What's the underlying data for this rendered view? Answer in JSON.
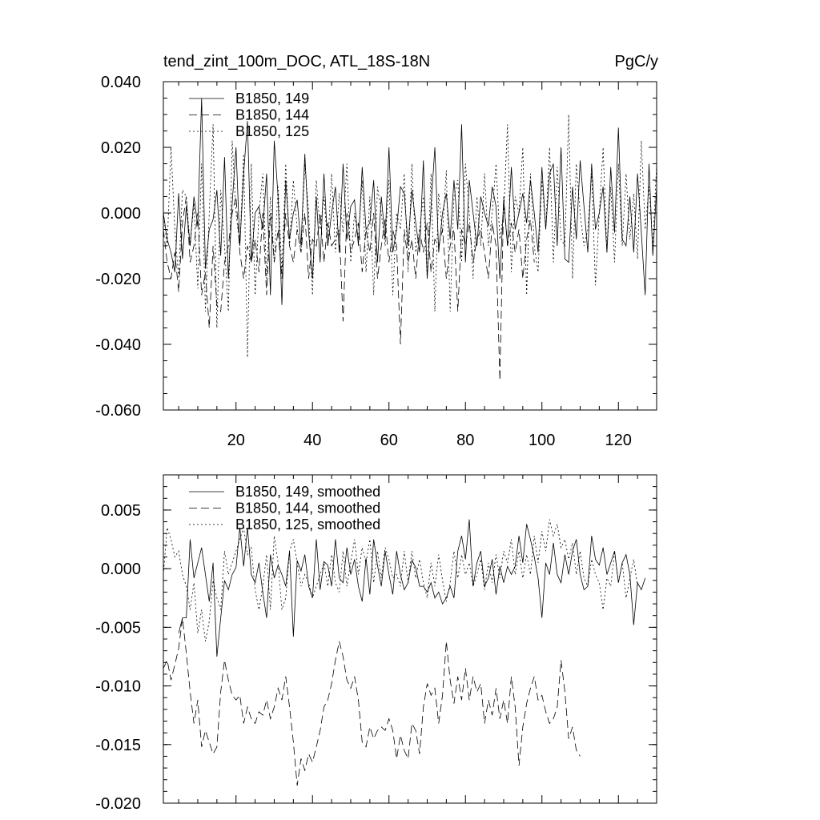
{
  "chart_data": [
    {
      "type": "line",
      "title": "tend_zint_100m_DOC, ATL_18S-18N",
      "units": "PgC/y",
      "xlim": [
        1,
        130
      ],
      "ylim": [
        -0.06,
        0.04
      ],
      "x_ticks": [
        20,
        40,
        60,
        80,
        100,
        120
      ],
      "x_tick_labels": [
        "20",
        "40",
        "60",
        "80",
        "100",
        "120"
      ],
      "y_ticks": [
        0.04,
        0.02,
        0.0,
        -0.02,
        -0.04,
        -0.06
      ],
      "y_tick_labels": [
        "0.040",
        "0.020",
        "0.000",
        "-0.020",
        "-0.040",
        "-0.060"
      ],
      "legend_position": "top-left",
      "series": [
        {
          "name": "B1850, 149",
          "style": "solid",
          "start": 1,
          "step": 1,
          "values": [
            0.0,
            -0.008,
            -0.012,
            -0.018,
            0.006,
            -0.014,
            0.002,
            -0.01,
            0.005,
            -0.004,
            0.035,
            -0.017,
            -0.005,
            -0.002,
            0.007,
            -0.013,
            0.017,
            -0.02,
            0.003,
            0.02,
            -0.01,
            0.012,
            0.028,
            -0.015,
            0.0,
            0.002,
            -0.005,
            0.012,
            -0.025,
            0.022,
            0.005,
            -0.028,
            0.01,
            -0.008,
            0.0,
            0.004,
            -0.01,
            0.018,
            -0.006,
            -0.02,
            0.005,
            -0.015,
            0.012,
            -0.01,
            0.0,
            0.008,
            -0.012,
            0.015,
            -0.008,
            0.002,
            0.004,
            -0.01,
            0.014,
            -0.005,
            -0.003,
            0.01,
            -0.015,
            0.005,
            -0.008,
            0.02,
            -0.012,
            -0.005,
            0.008,
            0.006,
            -0.01,
            0.007,
            -0.003,
            -0.012,
            0.016,
            -0.02,
            0.002,
            0.02,
            -0.012,
            0.0,
            0.006,
            -0.008,
            0.01,
            -0.005,
            0.027,
            -0.015,
            0.01,
            0.0,
            -0.01,
            0.005,
            0.0,
            -0.004,
            0.008,
            0.002,
            -0.02,
            0.004,
            -0.01,
            0.014,
            -0.005,
            0.0,
            0.006,
            -0.003,
            0.01,
            0.0,
            -0.012,
            0.014,
            -0.005,
            0.012,
            0.015,
            -0.01,
            0.02,
            -0.014,
            -0.015,
            0.008,
            -0.008,
            0.016,
            0.002,
            -0.012,
            0.015,
            -0.005,
            0.0,
            0.008,
            -0.012,
            0.014,
            -0.006,
            0.026,
            -0.008,
            -0.01,
            0.005,
            -0.012,
            0.012,
            -0.006,
            -0.025,
            0.015,
            -0.013,
            0.008
          ]
        },
        {
          "name": "B1850, 144",
          "style": "dashed",
          "start": 1,
          "step": 1,
          "values": [
            -0.005,
            -0.015,
            -0.02,
            -0.012,
            -0.024,
            -0.003,
            0.005,
            -0.015,
            -0.01,
            0.0,
            -0.025,
            -0.018,
            -0.035,
            -0.01,
            -0.028,
            -0.03,
            -0.015,
            -0.01,
            0.0,
            0.005,
            -0.012,
            -0.02,
            -0.01,
            -0.015,
            -0.008,
            -0.018,
            0.0,
            -0.025,
            0.0,
            -0.015,
            -0.005,
            -0.02,
            0.0,
            -0.01,
            -0.015,
            -0.005,
            -0.012,
            0.0,
            -0.02,
            -0.008,
            -0.01,
            0.0,
            -0.015,
            -0.003,
            -0.01,
            -0.008,
            -0.005,
            -0.033,
            0.0,
            -0.012,
            -0.008,
            -0.003,
            -0.018,
            -0.005,
            -0.012,
            0.0,
            -0.02,
            -0.01,
            -0.002,
            -0.015,
            -0.005,
            -0.01,
            -0.04,
            -0.005,
            -0.015,
            -0.008,
            -0.02,
            -0.005,
            -0.012,
            -0.003,
            -0.018,
            -0.008,
            -0.01,
            -0.005,
            -0.02,
            -0.01,
            -0.005,
            -0.03,
            -0.005,
            -0.01,
            -0.003,
            -0.015,
            -0.008,
            -0.005,
            -0.012,
            -0.02,
            -0.003,
            -0.01,
            -0.051,
            0.005,
            -0.01,
            -0.003,
            -0.012,
            -0.005,
            -0.02,
            -0.008,
            -0.002,
            -0.015
          ]
        },
        {
          "name": "B1850, 125",
          "style": "dotted",
          "start": 1,
          "step": 1,
          "values": [
            0.0,
            -0.01,
            0.02,
            -0.005,
            -0.02,
            0.007,
            0.005,
            -0.01,
            0.003,
            -0.023,
            0.015,
            -0.03,
            0.0,
            0.027,
            -0.035,
            0.007,
            -0.01,
            -0.03,
            0.022,
            0.0,
            -0.01,
            0.018,
            -0.044,
            0.015,
            -0.025,
            0.0,
            0.012,
            -0.02,
            0.005,
            -0.015,
            0.008,
            -0.018,
            0.015,
            -0.01,
            0.01,
            -0.005,
            -0.012,
            0.015,
            0.0,
            -0.025,
            0.01,
            -0.005,
            0.005,
            -0.01,
            0.012,
            -0.012,
            0.006,
            -0.006,
            0.015,
            -0.015,
            0.0,
            -0.008,
            0.01,
            -0.018,
            0.005,
            -0.025,
            0.008,
            0.0,
            -0.01,
            0.01,
            -0.025,
            0.0,
            -0.005,
            0.012,
            -0.018,
            0.015,
            -0.012,
            -0.005,
            0.005,
            -0.02,
            0.012,
            -0.03,
            0.006,
            -0.006,
            0.013,
            -0.03,
            0.005,
            0.01,
            -0.015,
            0.015,
            0.0,
            -0.02,
            0.005,
            -0.01,
            0.012,
            -0.01,
            0.0,
            0.015,
            -0.008,
            0.0,
            0.027,
            -0.018,
            0.005,
            0.0,
            0.02,
            -0.025,
            0.012,
            -0.01,
            -0.018,
            0.01,
            -0.005,
            0.02,
            -0.015,
            0.014,
            -0.008,
            -0.01,
            0.03,
            -0.02,
            0.015,
            0.0,
            -0.01,
            -0.005,
            0.012,
            -0.022,
            0.0,
            0.02,
            -0.012,
            0.008,
            -0.015,
            0.015,
            -0.01,
            0.012,
            -0.008,
            0.006,
            -0.014,
            0.022,
            -0.005,
            0.008,
            -0.01,
            0.015
          ]
        }
      ]
    },
    {
      "type": "line",
      "title": "",
      "xlim": [
        1,
        130
      ],
      "ylim": [
        -0.02,
        0.008
      ],
      "x_ticks": [
        20,
        40,
        60,
        80,
        100,
        120
      ],
      "y_ticks": [
        0.005,
        0.0,
        -0.005,
        -0.01,
        -0.015,
        -0.02
      ],
      "y_tick_labels": [
        "0.005",
        "0.000",
        "-0.005",
        "-0.010",
        "-0.015",
        "-0.020"
      ],
      "legend_position": "top-left",
      "series": [
        {
          "name": "B1850, 149, smoothed",
          "style": "solid",
          "start": 5,
          "step": 1,
          "values": [
            -0.0055,
            -0.0042,
            -0.0042,
            0.0025,
            -0.0008,
            0.0005,
            0.0018,
            -0.0005,
            -0.0028,
            0.0005,
            -0.0075,
            -0.0042,
            -0.001,
            -0.0018,
            -0.0005,
            0.0001,
            0.0035,
            0.0002,
            0.0035,
            -0.0005,
            -0.0012,
            0.0005,
            -0.002,
            -0.0042,
            0.0012,
            -0.0008,
            0.0003,
            -0.0005,
            -0.0015,
            0.0015,
            -0.0058,
            0.0007,
            -0.0002,
            0.0012,
            -0.0015,
            -0.0025,
            0.0025,
            -0.0018,
            0.0006,
            0.0003,
            -0.0015,
            0.0025,
            -0.0008,
            -0.0012,
            0.0018,
            -0.0005,
            0.0008,
            -0.0015,
            -0.0028,
            0.0009,
            -0.0022,
            0.0025,
            0.0003,
            -0.0015,
            0.0015,
            -0.0005,
            -0.0022,
            0.0015,
            -0.0005,
            -0.0018,
            -0.0012,
            0.0007,
            0.0001,
            -0.0015,
            -0.0015,
            -0.002,
            -0.0012,
            -0.0025,
            -0.002,
            -0.003,
            -0.0025,
            -0.0015,
            -0.0025,
            0.0015,
            0.0028,
            0.0008,
            0.0042,
            -0.0015,
            0.0005,
            0.0015,
            -0.0015,
            -0.0008,
            0.0008,
            -0.0022,
            0.0002,
            -0.0012,
            0.0002,
            -0.0005,
            0.0002,
            0.0028,
            0.0005,
            0.0038,
            0.0025,
            0.001,
            -0.0008,
            -0.0042,
            0.0005,
            -0.0005,
            0.0022,
            -0.0005,
            -0.0012,
            0.0012,
            -0.0005,
            0.0015,
            0.0025,
            -0.0005,
            -0.0018,
            -0.0015,
            0.0028,
            0.0008,
            0.0003,
            0.0018,
            -0.0005,
            0.0005,
            0.0015,
            -0.0012,
            0.0005,
            0.0012,
            -0.0005,
            -0.0048,
            -0.0012,
            -0.0018,
            -0.0008
          ]
        },
        {
          "name": "B1850, 144, smoothed",
          "style": "dashed",
          "start": 1,
          "step": 1,
          "values": [
            -0.0085,
            -0.0078,
            -0.0095,
            -0.0082,
            -0.0068,
            -0.0042,
            -0.0072,
            -0.0105,
            -0.0132,
            -0.0112,
            -0.0152,
            -0.0138,
            -0.0148,
            -0.0158,
            -0.0152,
            -0.0105,
            -0.0078,
            -0.0095,
            -0.0108,
            -0.0112,
            -0.0108,
            -0.0132,
            -0.0118,
            -0.0128,
            -0.0132,
            -0.0122,
            -0.0125,
            -0.0112,
            -0.0128,
            -0.0118,
            -0.0102,
            -0.0112,
            -0.0092,
            -0.0118,
            -0.0148,
            -0.0185,
            -0.0162,
            -0.0172,
            -0.0158,
            -0.0165,
            -0.0152,
            -0.0138,
            -0.0118,
            -0.0112,
            -0.0098,
            -0.0078,
            -0.0062,
            -0.0075,
            -0.0095,
            -0.0102,
            -0.0092,
            -0.0112,
            -0.0148,
            -0.0152,
            -0.0135,
            -0.0145,
            -0.0138,
            -0.0135,
            -0.0138,
            -0.0128,
            -0.0138,
            -0.0162,
            -0.0142,
            -0.0155,
            -0.0162,
            -0.0132,
            -0.0138,
            -0.0158,
            -0.0118,
            -0.0098,
            -0.0108,
            -0.0102,
            -0.0132,
            -0.0108,
            -0.0062,
            -0.0095,
            -0.0115,
            -0.0092,
            -0.0112,
            -0.0085,
            -0.0112,
            -0.0092,
            -0.0105,
            -0.0098,
            -0.0132,
            -0.0112,
            -0.0125,
            -0.0102,
            -0.0128,
            -0.0112,
            -0.0132,
            -0.0092,
            -0.0118,
            -0.0168,
            -0.0135,
            -0.0115,
            -0.0102,
            -0.0092,
            -0.0112,
            -0.0108,
            -0.0122,
            -0.0132,
            -0.0128,
            -0.0118,
            -0.0078,
            -0.0105,
            -0.0145,
            -0.0135,
            -0.0155,
            -0.016
          ]
        },
        {
          "name": "B1850, 125, smoothed",
          "style": "dotted",
          "start": 1,
          "step": 1,
          "values": [
            -0.0005,
            0.0035,
            0.0025,
            0.001,
            0.0015,
            -0.0005,
            -0.0015,
            -0.0035,
            -0.0012,
            -0.0055,
            -0.0035,
            -0.0062,
            -0.0045,
            -0.001,
            -0.0025,
            -0.0035,
            0.0015,
            -0.0005,
            0.0005,
            0.0015,
            0.0025,
            0.0035,
            0.0012,
            0.0018,
            -0.0018,
            -0.0035,
            -0.0015,
            0.0012,
            -0.0035,
            0.0028,
            0.0005,
            -0.0035,
            -0.0025,
            0.0015,
            0.0025,
            0.0005,
            -0.0015,
            -0.0005,
            -0.0012,
            -0.0025,
            -0.0015,
            -0.0005,
            0.0005,
            -0.0015,
            0.0012,
            -0.0012,
            -0.002,
            0.0015,
            -0.0015,
            0.0005,
            0.0025,
            -0.0005,
            0.0018,
            0.0005,
            0.0025,
            -0.0012,
            0.0015,
            -0.0008,
            0.0018,
            0.0008,
            -0.0008,
            -0.0005,
            -0.0015,
            0.0015,
            -0.0012,
            0.0015,
            -0.0008,
            0.0008,
            -0.0012,
            -0.0025,
            0.0005,
            -0.0015,
            0.0012,
            -0.001,
            -0.0028,
            -0.0012,
            0.0015,
            -0.0008,
            0.0012,
            -0.0005,
            0.0005,
            -0.0015,
            -0.0005,
            0.0008,
            -0.0018,
            0.0005,
            -0.0012,
            0.0012,
            -0.0008,
            0.0015,
            0.0005,
            0.0025,
            -0.0005,
            0.0015,
            -0.0008,
            0.0012,
            -0.0005,
            0.0028,
            0.0005,
            0.0032,
            0.0015,
            0.0042,
            0.0028,
            0.0038,
            0.0018,
            0.0025,
            0.0008,
            0.0022,
            -0.0005,
            0.0015,
            -0.0008,
            -0.0015,
            0.0008,
            -0.0005,
            -0.0012,
            -0.0035,
            -0.0008,
            -0.0015,
            0.0015,
            -0.0012,
            0.0005,
            -0.0025,
            -0.0008,
            0.0008,
            -0.0015
          ]
        }
      ]
    }
  ]
}
